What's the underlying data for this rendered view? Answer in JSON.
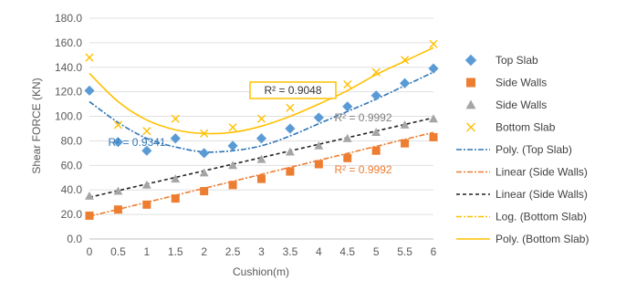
{
  "chart_data": {
    "type": "scatter",
    "title": "",
    "xlabel": "Cushion(m)",
    "ylabel": "Shear FORCE (KN)",
    "xlim": [
      0,
      6
    ],
    "ylim": [
      0,
      180
    ],
    "x_ticks": [
      "0",
      "0.5",
      "1",
      "1.5",
      "2",
      "2.5",
      "3",
      "3.5",
      "4",
      "4.5",
      "5",
      "5.5",
      "6"
    ],
    "y_ticks": [
      "0.0",
      "20.0",
      "40.0",
      "60.0",
      "80.0",
      "100.0",
      "120.0",
      "140.0",
      "160.0",
      "180.0"
    ],
    "grid": "horizontal",
    "legend_position": "right",
    "x": [
      0,
      0.5,
      1,
      1.5,
      2,
      2.5,
      3,
      3.5,
      4,
      4.5,
      5,
      5.5,
      6
    ],
    "series": [
      {
        "name": "Top Slab",
        "marker": "diamond",
        "color": "#5b9bd5",
        "values": [
          121,
          79,
          72,
          82,
          70,
          76,
          82,
          90,
          99,
          108,
          117,
          127,
          139
        ]
      },
      {
        "name": "Side Walls",
        "marker": "square",
        "color": "#ed7d31",
        "values": [
          19,
          24,
          28,
          33,
          39,
          44,
          49,
          55,
          61,
          66,
          72,
          78,
          83
        ]
      },
      {
        "name": "Side Walls",
        "marker": "triangle",
        "color": "#a5a5a5",
        "values": [
          35,
          39,
          44,
          49,
          54,
          60,
          65,
          71,
          76,
          82,
          87,
          93,
          98
        ]
      },
      {
        "name": "Bottom Slab",
        "marker": "x",
        "color": "#ffc000",
        "values": [
          148,
          93,
          88,
          98,
          86,
          91,
          98,
          107,
          117,
          126,
          136,
          146,
          159
        ]
      }
    ],
    "trendlines": [
      {
        "name": "Poly. (Top Slab)",
        "type": "poly",
        "color": "#2e75b6",
        "dash": "6 2 2 2",
        "y": [
          112,
          95,
          82,
          75,
          71,
          72,
          76,
          84,
          94,
          104,
          114,
          125,
          136
        ]
      },
      {
        "name": "Linear (Side Walls)",
        "type": "linear",
        "color": "#ed7d31",
        "dash": "6 2 2 2",
        "y": [
          18.5,
          24.2,
          29.9,
          35.6,
          41.3,
          47.0,
          52.7,
          58.4,
          64.1,
          69.8,
          75.5,
          81.2,
          86.9
        ]
      },
      {
        "name": "Linear (Side Walls)",
        "type": "linear",
        "color": "#222222",
        "dash": "4 3",
        "y": [
          34.0,
          39.4,
          44.8,
          50.2,
          55.6,
          61.0,
          66.4,
          71.8,
          77.2,
          82.6,
          88.0,
          93.4,
          98.8
        ]
      },
      {
        "name": "Log. (Bottom Slab)",
        "type": "log",
        "color": "#ffc000",
        "dash": "6 2 2 2",
        "y": []
      },
      {
        "name": "Poly. (Bottom Slab)",
        "type": "poly",
        "color": "#ffc000",
        "dash": "",
        "y": [
          135,
          112,
          97,
          89,
          86,
          87,
          92,
          100,
          110,
          121,
          134,
          145,
          156
        ]
      }
    ],
    "annotations": [
      {
        "text": "R² = 0.9048",
        "color": "#333333",
        "boxed": true
      },
      {
        "text": "R² = 0.9341",
        "color": "#2e75b6",
        "boxed": false
      },
      {
        "text": "R² = 0.9992",
        "color": "#7f7f7f",
        "boxed": false
      },
      {
        "text": "R² = 0.9992",
        "color": "#ed7d31",
        "boxed": false
      }
    ]
  }
}
